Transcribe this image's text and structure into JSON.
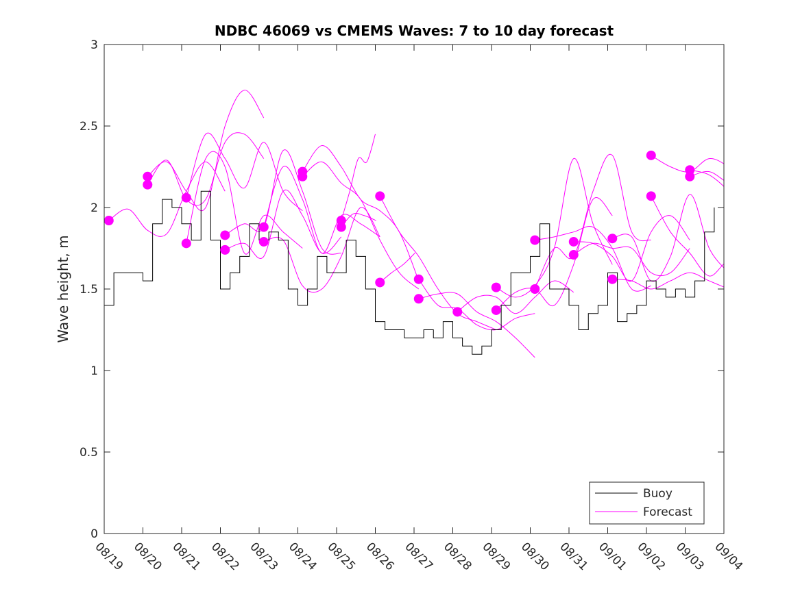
{
  "chart_data": {
    "type": "line",
    "title": "NDBC 46069 vs CMEMS Waves: 7 to 10 day forecast",
    "xlabel": "",
    "ylabel": "Wave height, m",
    "xlim": [
      0,
      16
    ],
    "ylim": [
      0,
      3
    ],
    "x_unit": "days since 08/19",
    "xtick_labels": [
      "08/19",
      "08/20",
      "08/21",
      "08/22",
      "08/23",
      "08/24",
      "08/25",
      "08/26",
      "08/27",
      "08/28",
      "08/29",
      "08/30",
      "08/31",
      "09/01",
      "09/02",
      "09/03",
      "09/04"
    ],
    "ytick_values": [
      0,
      0.5,
      1,
      1.5,
      2,
      2.5,
      3
    ],
    "ytick_labels": [
      "0",
      "0.5",
      "1",
      "1.5",
      "2",
      "2.5",
      "3"
    ],
    "grid": false,
    "legend": {
      "placement": "bottom-right",
      "entries": [
        "Buoy",
        "Forecast"
      ]
    },
    "colors": {
      "buoy": "#000000",
      "forecast": "#ff00ff"
    },
    "buoy": {
      "name": "Buoy",
      "start_day": 0,
      "step_days": 0.25,
      "values": [
        1.4,
        1.6,
        1.6,
        1.6,
        1.55,
        1.9,
        2.05,
        2.0,
        1.9,
        1.8,
        2.1,
        1.8,
        1.5,
        1.6,
        1.7,
        1.9,
        1.8,
        1.85,
        1.8,
        1.5,
        1.4,
        1.5,
        1.7,
        1.6,
        1.6,
        1.8,
        1.7,
        1.5,
        1.3,
        1.25,
        1.25,
        1.2,
        1.2,
        1.25,
        1.2,
        1.3,
        1.2,
        1.15,
        1.1,
        1.15,
        1.25,
        1.4,
        1.6,
        1.6,
        1.7,
        1.9,
        1.5,
        1.5,
        1.4,
        1.25,
        1.35,
        1.4,
        1.6,
        1.3,
        1.35,
        1.4,
        1.55,
        1.5,
        1.45,
        1.5,
        1.45,
        1.55,
        1.85,
        2.0
      ]
    },
    "forecasts": [
      {
        "start_day": 0.12,
        "step_days": 0.5,
        "values": [
          1.92,
          1.99,
          1.86,
          1.84,
          2.1,
          2.28,
          2.1
        ]
      },
      {
        "start_day": 1.12,
        "step_days": 0.5,
        "values": [
          2.19,
          2.28,
          2.1,
          2.0,
          2.5,
          2.72,
          2.55
        ]
      },
      {
        "start_day": 1.12,
        "step_days": 0.5,
        "values": [
          2.14,
          2.29,
          2.05,
          2.05,
          2.4,
          2.45,
          2.3
        ]
      },
      {
        "start_day": 2.12,
        "step_days": 0.5,
        "values": [
          2.06,
          2.45,
          2.3,
          2.12,
          2.4,
          2.1,
          1.98
        ]
      },
      {
        "start_day": 2.12,
        "step_days": 0.5,
        "values": [
          1.78,
          2.3,
          2.25,
          1.72,
          1.95,
          1.85,
          1.75
        ]
      },
      {
        "start_day": 3.12,
        "step_days": 0.5,
        "values": [
          1.83,
          1.9,
          1.88,
          2.35,
          2.1,
          1.75,
          1.72
        ]
      },
      {
        "start_day": 3.12,
        "step_days": 0.5,
        "values": [
          1.74,
          1.78,
          1.7,
          2.1,
          1.95,
          1.72,
          1.82
        ]
      },
      {
        "start_day": 4.12,
        "step_days": 0.5,
        "values": [
          1.88,
          2.25,
          2.05,
          1.72,
          1.95,
          1.9,
          1.82
        ]
      },
      {
        "start_day": 4.12,
        "step_days": 0.5,
        "values": [
          1.79,
          1.8,
          1.52,
          1.5,
          1.7,
          2.0,
          1.82
        ]
      },
      {
        "start_day": 5.12,
        "step_days": 0.5,
        "values": [
          2.22,
          2.38,
          2.25,
          2.05,
          1.98,
          1.85,
          1.55
        ]
      },
      {
        "start_day": 5.12,
        "step_days": 0.5,
        "values": [
          2.19,
          2.28,
          2.15,
          2.05,
          1.8,
          1.6,
          1.5
        ]
      },
      {
        "start_day": 6.12,
        "step_days": 0.22,
        "values": [
          1.92,
          2.1,
          2.3,
          2.28,
          2.45
        ]
      },
      {
        "start_day": 6.12,
        "step_days": 0.3,
        "values": [
          1.88,
          1.96,
          1.95,
          1.92
        ]
      },
      {
        "start_day": 7.12,
        "step_days": 0.5,
        "values": [
          2.07,
          1.85,
          1.7,
          1.5,
          1.35,
          1.3,
          1.25
        ]
      },
      {
        "start_day": 7.12,
        "step_days": 0.3,
        "values": [
          1.54,
          1.6,
          1.65,
          1.72
        ]
      },
      {
        "start_day": 8.12,
        "step_days": 0.5,
        "values": [
          1.56,
          1.4,
          1.38,
          1.28,
          1.25,
          1.32,
          1.35
        ]
      },
      {
        "start_day": 8.12,
        "step_days": 0.5,
        "values": [
          1.44,
          1.47,
          1.47,
          1.36,
          1.3,
          1.2,
          1.08
        ]
      },
      {
        "start_day": 9.12,
        "step_days": 0.5,
        "values": [
          1.36,
          1.45,
          1.45,
          1.35,
          1.45,
          1.55,
          1.48
        ]
      },
      {
        "start_day": 10.12,
        "step_days": 0.5,
        "values": [
          1.51,
          1.45,
          1.52,
          1.75,
          2.3,
          1.9,
          1.65
        ]
      },
      {
        "start_day": 10.12,
        "step_days": 0.5,
        "values": [
          1.37,
          1.48,
          1.5,
          1.4,
          1.65,
          2.05,
          1.95
        ]
      },
      {
        "start_day": 11.12,
        "step_days": 0.5,
        "values": [
          1.8,
          1.82,
          1.85,
          1.88,
          1.75,
          1.5,
          1.52
        ]
      },
      {
        "start_day": 11.12,
        "step_days": 0.5,
        "values": [
          1.5,
          1.75,
          1.7,
          2.1,
          2.32,
          1.85,
          1.8
        ]
      },
      {
        "start_day": 12.12,
        "step_days": 0.5,
        "values": [
          1.79,
          1.78,
          1.7,
          1.55,
          1.85,
          1.95,
          1.8
        ]
      },
      {
        "start_day": 12.12,
        "step_days": 0.5,
        "values": [
          1.71,
          1.78,
          1.75,
          1.75,
          1.6,
          1.6,
          1.75
        ]
      },
      {
        "start_day": 13.12,
        "step_days": 0.5,
        "values": [
          1.81,
          1.82,
          1.55,
          1.7,
          2.08,
          1.75,
          1.6
        ]
      },
      {
        "start_day": 13.12,
        "step_days": 0.5,
        "values": [
          1.56,
          1.55,
          1.5,
          1.55,
          1.6,
          1.55,
          1.5
        ]
      },
      {
        "start_day": 14.12,
        "step_days": 0.5,
        "values": [
          2.32,
          2.25,
          2.22,
          2.3,
          2.25,
          2.15,
          2.0
        ]
      },
      {
        "start_day": 14.12,
        "step_days": 0.5,
        "values": [
          2.07,
          1.85,
          1.72,
          1.58,
          1.67,
          1.6,
          1.4
        ]
      },
      {
        "start_day": 15.12,
        "step_days": 0.5,
        "values": [
          2.23,
          2.2,
          2.1,
          1.95,
          1.75,
          1.65,
          1.5
        ]
      },
      {
        "start_day": 15.12,
        "step_days": 0.5,
        "values": [
          2.19,
          2.22,
          2.15,
          2.12,
          2.0
        ]
      }
    ]
  }
}
